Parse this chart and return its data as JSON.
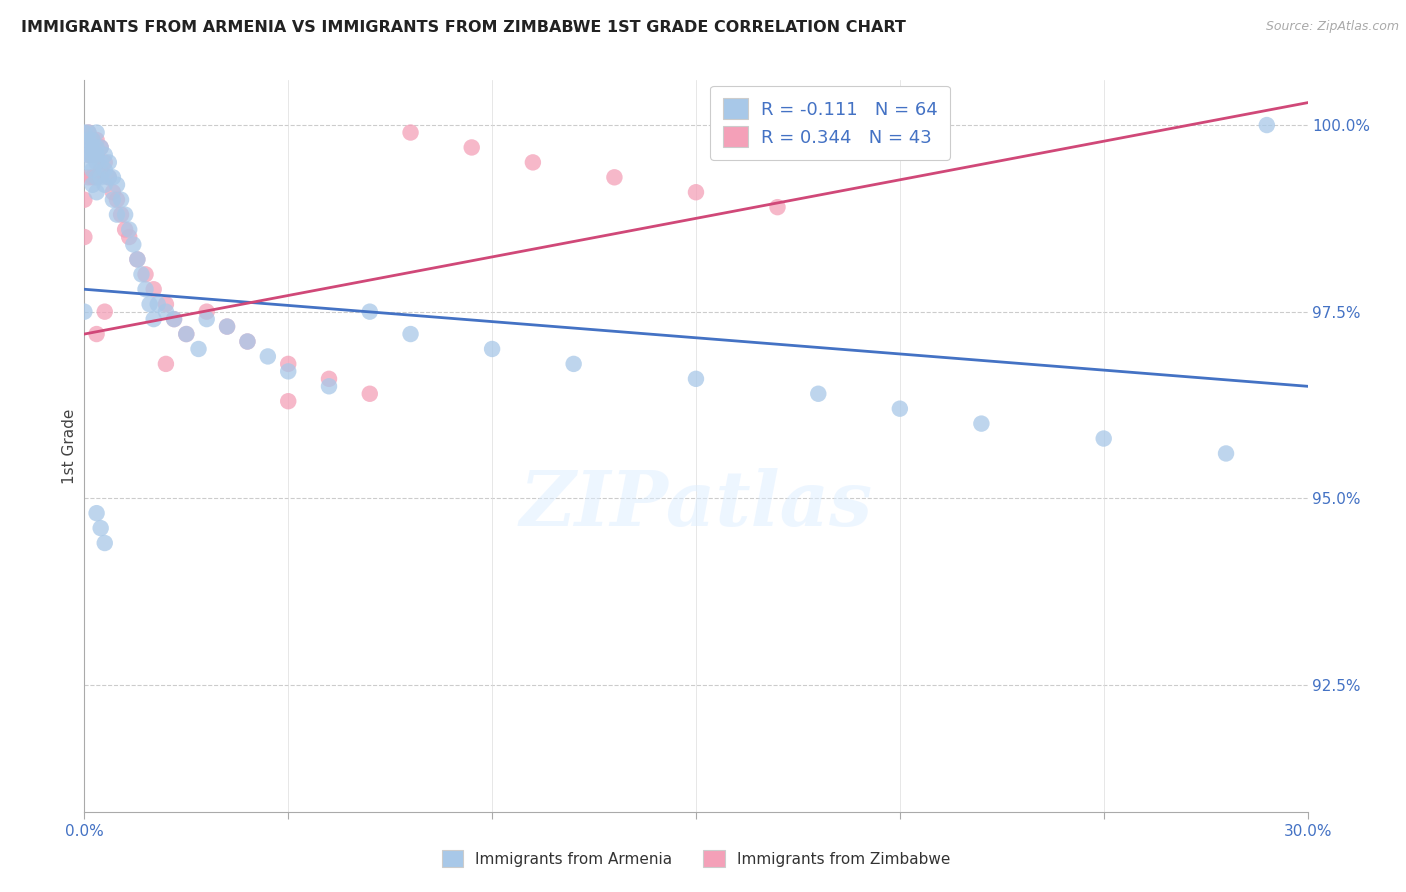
{
  "title": "IMMIGRANTS FROM ARMENIA VS IMMIGRANTS FROM ZIMBABWE 1ST GRADE CORRELATION CHART",
  "source": "Source: ZipAtlas.com",
  "ylabel": "1st Grade",
  "right_ytick_vals": [
    0.925,
    0.95,
    0.975,
    1.0
  ],
  "right_ytick_labels": [
    "92.5%",
    "95.0%",
    "97.5%",
    "100.0%"
  ],
  "armenia_color": "#a8c8e8",
  "zimbabwe_color": "#f4a0b8",
  "armenia_line_color": "#4472c4",
  "zimbabwe_line_color": "#d04878",
  "legend_text_color": "#4472c4",
  "legend_R_armenia": "R = -0.111",
  "legend_N_armenia": "N = 64",
  "legend_R_zimbabwe": "R = 0.344",
  "legend_N_zimbabwe": "N = 43",
  "legend_label_armenia": "Immigrants from Armenia",
  "legend_label_zimbabwe": "Immigrants from Zimbabwe",
  "watermark": "ZIPatlas",
  "xlim": [
    0.0,
    0.3
  ],
  "ylim": [
    0.908,
    1.006
  ],
  "armenia_line_x": [
    0.0,
    0.3
  ],
  "armenia_line_y": [
    0.978,
    0.965
  ],
  "zimbabwe_line_x": [
    0.0,
    0.3
  ],
  "zimbabwe_line_y": [
    0.972,
    1.003
  ],
  "armenia_x": [
    0.0,
    0.0,
    0.001,
    0.001,
    0.001,
    0.001,
    0.001,
    0.002,
    0.002,
    0.002,
    0.002,
    0.002,
    0.003,
    0.003,
    0.003,
    0.003,
    0.003,
    0.003,
    0.004,
    0.004,
    0.004,
    0.005,
    0.005,
    0.005,
    0.006,
    0.006,
    0.007,
    0.007,
    0.008,
    0.008,
    0.009,
    0.01,
    0.011,
    0.012,
    0.013,
    0.014,
    0.015,
    0.016,
    0.017,
    0.018,
    0.02,
    0.022,
    0.025,
    0.028,
    0.03,
    0.035,
    0.04,
    0.045,
    0.05,
    0.06,
    0.07,
    0.08,
    0.1,
    0.12,
    0.15,
    0.18,
    0.2,
    0.22,
    0.25,
    0.28,
    0.003,
    0.004,
    0.005,
    0.29
  ],
  "armenia_y": [
    0.975,
    0.999,
    0.999,
    0.998,
    0.997,
    0.996,
    0.995,
    0.998,
    0.997,
    0.996,
    0.994,
    0.992,
    0.999,
    0.997,
    0.996,
    0.995,
    0.993,
    0.991,
    0.997,
    0.995,
    0.993,
    0.996,
    0.994,
    0.992,
    0.995,
    0.993,
    0.993,
    0.99,
    0.992,
    0.988,
    0.99,
    0.988,
    0.986,
    0.984,
    0.982,
    0.98,
    0.978,
    0.976,
    0.974,
    0.976,
    0.975,
    0.974,
    0.972,
    0.97,
    0.974,
    0.973,
    0.971,
    0.969,
    0.967,
    0.965,
    0.975,
    0.972,
    0.97,
    0.968,
    0.966,
    0.964,
    0.962,
    0.96,
    0.958,
    0.956,
    0.948,
    0.946,
    0.944,
    1.0
  ],
  "zimbabwe_x": [
    0.0,
    0.0,
    0.001,
    0.001,
    0.001,
    0.001,
    0.002,
    0.002,
    0.002,
    0.003,
    0.003,
    0.003,
    0.004,
    0.004,
    0.005,
    0.005,
    0.006,
    0.007,
    0.008,
    0.009,
    0.01,
    0.011,
    0.013,
    0.015,
    0.017,
    0.02,
    0.022,
    0.025,
    0.03,
    0.035,
    0.04,
    0.05,
    0.06,
    0.07,
    0.08,
    0.095,
    0.11,
    0.13,
    0.15,
    0.17,
    0.003,
    0.02,
    0.05
  ],
  "zimbabwe_y": [
    0.99,
    0.985,
    0.999,
    0.998,
    0.996,
    0.993,
    0.998,
    0.996,
    0.993,
    0.998,
    0.996,
    0.993,
    0.997,
    0.994,
    0.995,
    0.975,
    0.993,
    0.991,
    0.99,
    0.988,
    0.986,
    0.985,
    0.982,
    0.98,
    0.978,
    0.976,
    0.974,
    0.972,
    0.975,
    0.973,
    0.971,
    0.968,
    0.966,
    0.964,
    0.999,
    0.997,
    0.995,
    0.993,
    0.991,
    0.989,
    0.972,
    0.968,
    0.963
  ]
}
